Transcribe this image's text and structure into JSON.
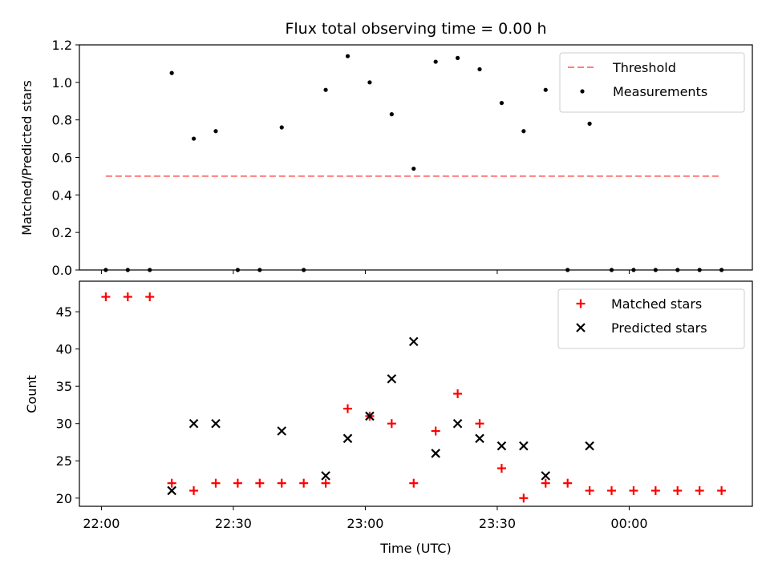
{
  "chart_data": {
    "type": "scatter",
    "title": "Flux total observing time = 0.00 h",
    "xlabel": "Time (UTC)",
    "x_ticks": [
      "22:00",
      "22:30",
      "23:00",
      "23:30",
      "00:00"
    ],
    "x_tick_minutes": [
      0,
      30,
      60,
      90,
      120
    ],
    "x_range_minutes": [
      -5,
      148
    ],
    "x_minutes": [
      1,
      6,
      11,
      16,
      21,
      26,
      31,
      36,
      41,
      46,
      51,
      56,
      61,
      66,
      71,
      76,
      81,
      86,
      91,
      96,
      101,
      106,
      111,
      116,
      121,
      126,
      131,
      136,
      141
    ],
    "panels": [
      {
        "ylabel": "Matched/Predicted stars",
        "ylim": [
          0,
          1.2
        ],
        "yticks": [
          0.0,
          0.2,
          0.4,
          0.6,
          0.8,
          1.0,
          1.2
        ],
        "ytick_labels": [
          "0.0",
          "0.2",
          "0.4",
          "0.6",
          "0.8",
          "1.0",
          "1.2"
        ],
        "legend": "top-right",
        "series": [
          {
            "name": "Threshold",
            "kind": "dashed-line",
            "color": "#ff7f7f",
            "x_range": [
              1,
              141
            ],
            "y": 0.5
          },
          {
            "name": "Measurements",
            "kind": "dot",
            "color": "#000000",
            "y": [
              0,
              0,
              0,
              1.05,
              0.7,
              0.74,
              0,
              0,
              0.76,
              0,
              0.96,
              1.14,
              1.0,
              0.83,
              0.54,
              1.11,
              1.13,
              1.07,
              0.89,
              0.74,
              0.96,
              0,
              0.78,
              0,
              0,
              0,
              0,
              0,
              0
            ]
          }
        ]
      },
      {
        "ylabel": "Count",
        "ylim": [
          18.9,
          49.1
        ],
        "yticks": [
          20,
          25,
          30,
          35,
          40,
          45
        ],
        "ytick_labels": [
          "20",
          "25",
          "30",
          "35",
          "40",
          "45"
        ],
        "legend": "top-right",
        "series": [
          {
            "name": "Matched stars",
            "kind": "plus",
            "color": "#ff0000",
            "y": [
              47,
              47,
              47,
              22,
              21,
              22,
              22,
              22,
              22,
              22,
              22,
              32,
              31,
              30,
              22,
              29,
              34,
              30,
              24,
              20,
              22,
              22,
              21,
              21,
              21,
              21,
              21,
              21,
              21
            ]
          },
          {
            "name": "Predicted stars",
            "kind": "cross",
            "color": "#000000",
            "x_minutes": [
              16,
              21,
              26,
              41,
              51,
              56,
              61,
              66,
              71,
              76,
              81,
              86,
              91,
              96,
              101,
              111
            ],
            "y": [
              21,
              30,
              30,
              29,
              23,
              28,
              31,
              36,
              41,
              26,
              30,
              28,
              27,
              27,
              23,
              27
            ]
          }
        ]
      }
    ]
  }
}
